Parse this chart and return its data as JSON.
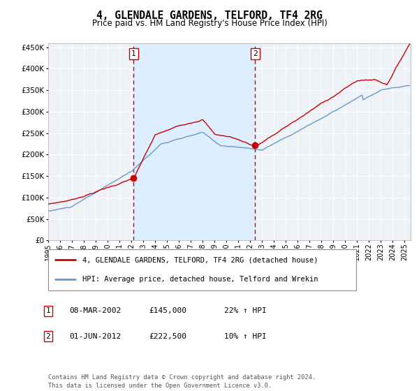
{
  "title": "4, GLENDALE GARDENS, TELFORD, TF4 2RG",
  "subtitle": "Price paid vs. HM Land Registry's House Price Index (HPI)",
  "legend_line1": "4, GLENDALE GARDENS, TELFORD, TF4 2RG (detached house)",
  "legend_line2": "HPI: Average price, detached house, Telford and Wrekin",
  "note1_num": "1",
  "note1_date": "08-MAR-2002",
  "note1_price": "£145,000",
  "note1_hpi": "22% ↑ HPI",
  "note2_num": "2",
  "note2_date": "01-JUN-2012",
  "note2_price": "£222,500",
  "note2_hpi": "10% ↑ HPI",
  "footer": "Contains HM Land Registry data © Crown copyright and database right 2024.\nThis data is licensed under the Open Government Licence v3.0.",
  "sale1_date_num": 2002.18,
  "sale1_price": 145000,
  "sale2_date_num": 2012.42,
  "sale2_price": 222500,
  "red_line_color": "#cc0000",
  "blue_line_color": "#6699cc",
  "shading_color": "#ddeeff",
  "dashed_line_color": "#cc0000",
  "background_color": "#ffffff",
  "plot_bg_color": "#eef2f7",
  "y_min": 0,
  "y_max": 460000,
  "x_min": 1995.0,
  "x_max": 2025.5
}
